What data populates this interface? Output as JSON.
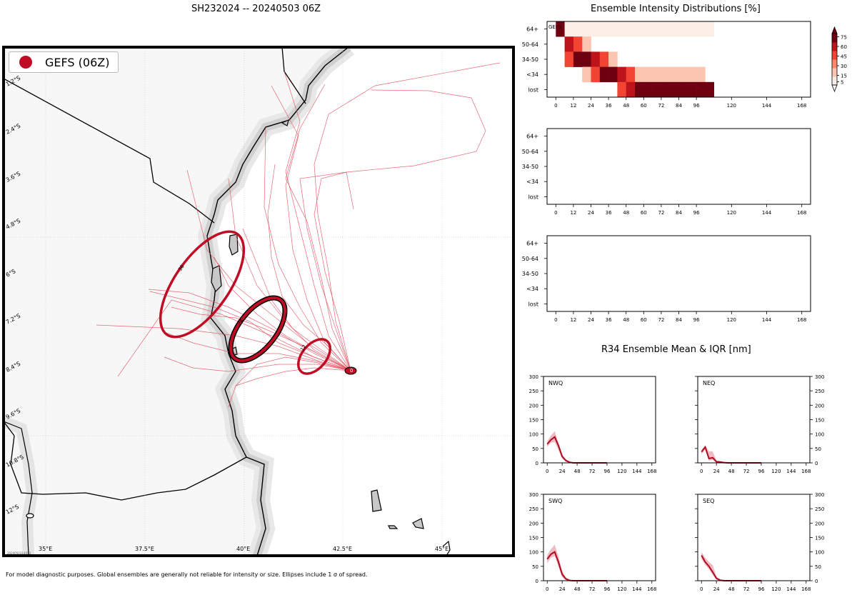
{
  "header": {
    "storm_title": "SH232024 -- 20240503 06Z",
    "intensity_title": "Ensemble Intensity Distributions [%]",
    "r34_title": "R34 Ensemble Mean & IQR [nm]"
  },
  "legend": {
    "label": "GEFS (06Z)",
    "color": "#c00d25"
  },
  "footnote": "For model diagnostic purposes. Global ensembles are generally not reliable for intensity or size. Ellipses include 1 σ of spread.",
  "map": {
    "lat_labels": [
      "1.2°S",
      "2.4°S",
      "3.6°S",
      "4.8°S",
      "6°S",
      "7.2°S",
      "8.4°S",
      "9.6°S",
      "10.8°S",
      "12°S"
    ],
    "lon_labels": [
      "35°E",
      "37.5°E",
      "40°E",
      "42.5°E",
      "45°E"
    ],
    "ellipse_labels": [
      "36",
      "24",
      "12",
      "0"
    ],
    "stamp": "2024050314413"
  },
  "chart_data": [
    {
      "type": "heatmap",
      "title": "Ensemble Intensity Distributions [%]",
      "panel_label": "GEFS",
      "x": [
        0,
        6,
        12,
        18,
        24,
        30,
        36,
        42,
        48,
        54,
        60,
        66,
        72,
        78,
        84,
        90,
        96,
        102
      ],
      "rows": [
        "64+",
        "50-64",
        "34-50",
        "<34",
        "lost"
      ],
      "values": {
        "64+": [
          75,
          3,
          3,
          3,
          3,
          3,
          3,
          3,
          3,
          3,
          3,
          3,
          3,
          3,
          3,
          3,
          3,
          3
        ],
        "50-64": [
          0,
          60,
          40,
          15,
          0,
          0,
          0,
          0,
          0,
          0,
          0,
          0,
          0,
          0,
          0,
          0,
          0,
          0
        ],
        "34-50": [
          0,
          40,
          75,
          75,
          60,
          40,
          15,
          0,
          0,
          0,
          0,
          0,
          0,
          0,
          0,
          0,
          0,
          0
        ],
        "<34": [
          0,
          0,
          0,
          15,
          40,
          75,
          75,
          60,
          40,
          15,
          15,
          15,
          15,
          15,
          15,
          15,
          15,
          0
        ],
        "lost": [
          0,
          0,
          0,
          0,
          0,
          0,
          0,
          40,
          60,
          75,
          75,
          75,
          75,
          75,
          75,
          75,
          75,
          75
        ]
      },
      "xticks": [
        "0",
        "12",
        "24",
        "36",
        "48",
        "60",
        "72",
        "84",
        "96",
        "120",
        "144",
        "168"
      ],
      "colorbar_ticks": [
        "5",
        "15",
        "30",
        "45",
        "60",
        "75"
      ]
    },
    {
      "type": "heatmap",
      "rows": [
        "64+",
        "50-64",
        "34-50",
        "<34",
        "lost"
      ],
      "xticks": [
        "0",
        "12",
        "24",
        "36",
        "48",
        "60",
        "72",
        "84",
        "96",
        "120",
        "144",
        "168"
      ],
      "values": {}
    },
    {
      "type": "heatmap",
      "rows": [
        "64+",
        "50-64",
        "34-50",
        "<34",
        "lost"
      ],
      "xticks": [
        "0",
        "12",
        "24",
        "36",
        "48",
        "60",
        "72",
        "84",
        "96",
        "120",
        "144",
        "168"
      ],
      "values": {}
    },
    {
      "type": "line",
      "quadrant": "NWQ",
      "x": [
        0,
        6,
        12,
        18,
        24,
        30,
        36,
        42,
        48,
        54,
        60,
        66,
        72,
        78,
        84,
        90,
        96
      ],
      "mean": [
        65,
        80,
        90,
        60,
        22,
        8,
        2,
        0,
        0,
        0,
        0,
        0,
        0,
        0,
        0,
        0,
        0
      ],
      "iqr_high": [
        75,
        95,
        110,
        70,
        30,
        12,
        4,
        1,
        0,
        0,
        0,
        0,
        0,
        0,
        0,
        0,
        0
      ],
      "iqr_low": [
        55,
        70,
        72,
        45,
        15,
        4,
        0,
        0,
        0,
        0,
        0,
        0,
        0,
        0,
        0,
        0,
        0
      ],
      "ylim": [
        0,
        300
      ],
      "yticks": [
        "0",
        "50",
        "100",
        "150",
        "200",
        "250",
        "300"
      ],
      "xticks": [
        "0",
        "24",
        "48",
        "72",
        "96",
        "120",
        "144",
        "168"
      ],
      "axis_side": "left"
    },
    {
      "type": "line",
      "quadrant": "NEQ",
      "x": [
        0,
        6,
        12,
        18,
        24,
        30,
        36,
        42,
        48,
        54,
        60,
        66,
        72,
        78,
        84,
        90,
        96
      ],
      "mean": [
        38,
        55,
        15,
        18,
        4,
        3,
        1,
        0,
        0,
        0,
        0,
        0,
        0,
        0,
        0,
        0,
        0
      ],
      "iqr_high": [
        45,
        60,
        40,
        40,
        8,
        5,
        2,
        0,
        0,
        0,
        0,
        0,
        0,
        0,
        0,
        0,
        0
      ],
      "iqr_low": [
        30,
        45,
        8,
        10,
        1,
        1,
        0,
        0,
        0,
        0,
        0,
        0,
        0,
        0,
        0,
        0,
        0
      ],
      "ylim": [
        0,
        300
      ],
      "yticks": [
        "0",
        "50",
        "100",
        "150",
        "200",
        "250",
        "300"
      ],
      "xticks": [
        "0",
        "24",
        "48",
        "72",
        "96",
        "120",
        "144",
        "168"
      ],
      "axis_side": "right"
    },
    {
      "type": "line",
      "quadrant": "SWQ",
      "x": [
        0,
        6,
        12,
        18,
        24,
        30,
        36,
        42,
        48,
        54,
        60,
        66,
        72,
        78,
        84,
        90,
        96
      ],
      "mean": [
        75,
        92,
        100,
        65,
        22,
        6,
        1,
        0,
        0,
        0,
        0,
        0,
        0,
        0,
        0,
        0,
        0
      ],
      "iqr_high": [
        90,
        110,
        125,
        85,
        35,
        12,
        3,
        0,
        0,
        0,
        0,
        0,
        0,
        0,
        0,
        0,
        0
      ],
      "iqr_low": [
        60,
        80,
        85,
        50,
        12,
        2,
        0,
        0,
        0,
        0,
        0,
        0,
        0,
        0,
        0,
        0,
        0
      ],
      "ylim": [
        0,
        300
      ],
      "yticks": [
        "0",
        "50",
        "100",
        "150",
        "200",
        "250",
        "300"
      ],
      "xticks": [
        "0",
        "24",
        "48",
        "72",
        "96",
        "120",
        "144",
        "168"
      ],
      "axis_side": "left"
    },
    {
      "type": "line",
      "quadrant": "SEQ",
      "x": [
        0,
        6,
        12,
        18,
        24,
        30,
        36,
        42,
        48,
        54,
        60,
        66,
        72,
        78,
        84,
        90,
        96
      ],
      "mean": [
        88,
        65,
        50,
        30,
        8,
        2,
        0,
        0,
        0,
        0,
        0,
        0,
        0,
        0,
        0,
        0,
        0
      ],
      "iqr_high": [
        100,
        80,
        65,
        55,
        15,
        4,
        1,
        0,
        0,
        0,
        0,
        0,
        0,
        0,
        0,
        0,
        0
      ],
      "iqr_low": [
        75,
        55,
        40,
        20,
        3,
        0,
        0,
        0,
        0,
        0,
        0,
        0,
        0,
        0,
        0,
        0,
        0
      ],
      "ylim": [
        0,
        300
      ],
      "yticks": [
        "0",
        "50",
        "100",
        "150",
        "200",
        "250",
        "300"
      ],
      "xticks": [
        "0",
        "24",
        "48",
        "72",
        "96",
        "120",
        "144",
        "168"
      ],
      "axis_side": "right"
    }
  ]
}
